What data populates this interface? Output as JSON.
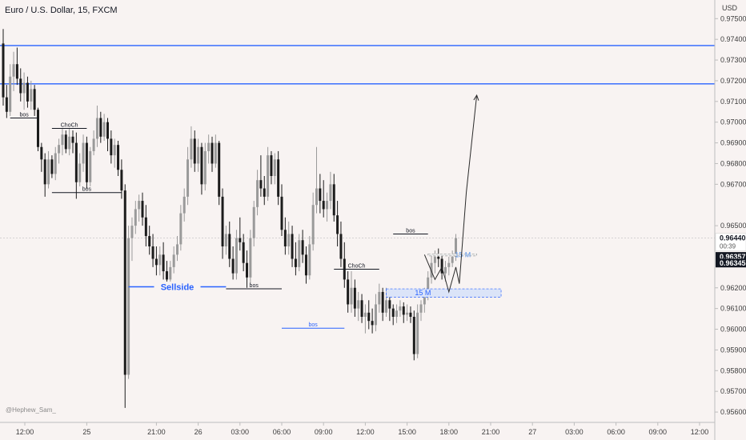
{
  "chart_data": {
    "type": "candlestick",
    "title": "Euro / U.S. Dollar, 15, FXCM",
    "currency_label": "USD",
    "watermark": "@Hephew_Sam_",
    "ylim": [
      0.9555,
      0.9759
    ],
    "y_ticks": [
      "0.97500",
      "0.97400",
      "0.97300",
      "0.97200",
      "0.97100",
      "0.97000",
      "0.96900",
      "0.96800",
      "0.96700",
      "0.96500",
      "0.96200",
      "0.96100",
      "0.96000",
      "0.95900",
      "0.95800",
      "0.95700",
      "0.95600"
    ],
    "x_ticks": [
      {
        "label": "12:00",
        "bar": 0
      },
      {
        "label": "25",
        "bar": 24
      },
      {
        "label": "21:00",
        "bar": 44
      },
      {
        "label": "26",
        "bar": 56
      },
      {
        "label": "03:00",
        "bar": 68
      },
      {
        "label": "06:00",
        "bar": 80
      },
      {
        "label": "09:00",
        "bar": 92
      },
      {
        "label": "12:00",
        "bar": 104
      },
      {
        "label": "15:00",
        "bar": 116
      },
      {
        "label": "18:00",
        "bar": 128
      },
      {
        "label": "21:00",
        "bar": 140
      },
      {
        "label": "27",
        "bar": 152
      },
      {
        "label": "03:00",
        "bar": 164
      },
      {
        "label": "06:00",
        "bar": 176
      },
      {
        "label": "09:00",
        "bar": 188
      },
      {
        "label": "12:00",
        "bar": 200
      }
    ],
    "price_labels": [
      {
        "text": "0.96440",
        "value": 0.9644,
        "time": "00:39",
        "bg": "#ffffff",
        "fg": "#131722"
      },
      {
        "text": "0.96357",
        "value": 0.96357,
        "bg": "#131722",
        "fg": "#ffffff"
      },
      {
        "text": "0.96345",
        "value": 0.96345,
        "bg": "#131722",
        "fg": "#ffffff"
      }
    ],
    "candles": [
      [
        0.9738,
        0.9745,
        0.9708,
        0.9712
      ],
      [
        0.9712,
        0.9718,
        0.9702,
        0.9705
      ],
      [
        0.9705,
        0.9728,
        0.9703,
        0.9722
      ],
      [
        0.9722,
        0.9734,
        0.9715,
        0.9728
      ],
      [
        0.9728,
        0.9736,
        0.9718,
        0.9721
      ],
      [
        0.9721,
        0.9726,
        0.971,
        0.9714
      ],
      [
        0.9714,
        0.9724,
        0.9706,
        0.9719
      ],
      [
        0.9719,
        0.9722,
        0.9707,
        0.971
      ],
      [
        0.971,
        0.972,
        0.9706,
        0.9716
      ],
      [
        0.9716,
        0.9718,
        0.9703,
        0.9706
      ],
      [
        0.9706,
        0.9707,
        0.9686,
        0.9688
      ],
      [
        0.9688,
        0.969,
        0.9676,
        0.9682
      ],
      [
        0.9682,
        0.9685,
        0.9664,
        0.967
      ],
      [
        0.967,
        0.9686,
        0.9668,
        0.9682
      ],
      [
        0.9682,
        0.9684,
        0.9673,
        0.9675
      ],
      [
        0.9675,
        0.9688,
        0.9672,
        0.9685
      ],
      [
        0.9685,
        0.9692,
        0.968,
        0.9689
      ],
      [
        0.9689,
        0.9697,
        0.9684,
        0.9694
      ],
      [
        0.9694,
        0.9696,
        0.9685,
        0.9687
      ],
      [
        0.9687,
        0.9697,
        0.9684,
        0.9693
      ],
      [
        0.9693,
        0.9696,
        0.9685,
        0.969
      ],
      [
        0.969,
        0.9695,
        0.9663,
        0.9671
      ],
      [
        0.9671,
        0.9685,
        0.9669,
        0.968
      ],
      [
        0.968,
        0.9694,
        0.9676,
        0.969
      ],
      [
        0.969,
        0.9693,
        0.9668,
        0.9671
      ],
      [
        0.9671,
        0.9688,
        0.9669,
        0.9686
      ],
      [
        0.9686,
        0.9696,
        0.9684,
        0.9692
      ],
      [
        0.9692,
        0.9708,
        0.9688,
        0.9702
      ],
      [
        0.9702,
        0.9705,
        0.969,
        0.9693
      ],
      [
        0.9693,
        0.9704,
        0.9691,
        0.97
      ],
      [
        0.97,
        0.9702,
        0.9686,
        0.9692
      ],
      [
        0.9692,
        0.9696,
        0.968,
        0.9684
      ],
      [
        0.9684,
        0.9692,
        0.9678,
        0.9689
      ],
      [
        0.9689,
        0.9691,
        0.9674,
        0.9677
      ],
      [
        0.9677,
        0.9682,
        0.9663,
        0.9667
      ],
      [
        0.9667,
        0.967,
        0.9562,
        0.9578
      ],
      [
        0.9578,
        0.965,
        0.9576,
        0.9644
      ],
      [
        0.9644,
        0.9654,
        0.9633,
        0.965
      ],
      [
        0.965,
        0.9662,
        0.9646,
        0.9658
      ],
      [
        0.9658,
        0.9665,
        0.9652,
        0.9662
      ],
      [
        0.9662,
        0.9666,
        0.965,
        0.9654
      ],
      [
        0.9654,
        0.966,
        0.964,
        0.9645
      ],
      [
        0.9645,
        0.965,
        0.9636,
        0.964
      ],
      [
        0.964,
        0.9646,
        0.963,
        0.9634
      ],
      [
        0.9634,
        0.964,
        0.9626,
        0.9631
      ],
      [
        0.9631,
        0.964,
        0.9626,
        0.9636
      ],
      [
        0.9636,
        0.9642,
        0.9624,
        0.9628
      ],
      [
        0.9628,
        0.9633,
        0.962,
        0.9624
      ],
      [
        0.9624,
        0.9633,
        0.962,
        0.963
      ],
      [
        0.963,
        0.964,
        0.9627,
        0.9636
      ],
      [
        0.9636,
        0.9645,
        0.9633,
        0.9641
      ],
      [
        0.9641,
        0.966,
        0.9638,
        0.9656
      ],
      [
        0.9656,
        0.9668,
        0.9652,
        0.9664
      ],
      [
        0.9664,
        0.9688,
        0.966,
        0.9682
      ],
      [
        0.9682,
        0.9698,
        0.9678,
        0.9692
      ],
      [
        0.9692,
        0.9696,
        0.9676,
        0.968
      ],
      [
        0.968,
        0.9692,
        0.9676,
        0.9688
      ],
      [
        0.9688,
        0.969,
        0.9665,
        0.967
      ],
      [
        0.967,
        0.969,
        0.9667,
        0.9686
      ],
      [
        0.9686,
        0.9694,
        0.968,
        0.969
      ],
      [
        0.969,
        0.9693,
        0.9676,
        0.968
      ],
      [
        0.968,
        0.9694,
        0.9678,
        0.969
      ],
      [
        0.969,
        0.9691,
        0.966,
        0.9664
      ],
      [
        0.9664,
        0.9668,
        0.9634,
        0.964
      ],
      [
        0.964,
        0.965,
        0.9636,
        0.9646
      ],
      [
        0.9646,
        0.9652,
        0.963,
        0.9634
      ],
      [
        0.9634,
        0.964,
        0.9624,
        0.9627
      ],
      [
        0.9627,
        0.9648,
        0.9624,
        0.9644
      ],
      [
        0.9644,
        0.9654,
        0.9638,
        0.9642
      ],
      [
        0.9642,
        0.9646,
        0.9628,
        0.9632
      ],
      [
        0.9632,
        0.9638,
        0.962,
        0.9625
      ],
      [
        0.9625,
        0.9648,
        0.9622,
        0.9644
      ],
      [
        0.9644,
        0.9662,
        0.964,
        0.9659
      ],
      [
        0.9659,
        0.9677,
        0.9655,
        0.9672
      ],
      [
        0.9672,
        0.9684,
        0.9664,
        0.9668
      ],
      [
        0.9668,
        0.9674,
        0.966,
        0.9664
      ],
      [
        0.9664,
        0.9688,
        0.9662,
        0.9684
      ],
      [
        0.9684,
        0.9686,
        0.967,
        0.9674
      ],
      [
        0.9674,
        0.9685,
        0.967,
        0.9682
      ],
      [
        0.9682,
        0.9686,
        0.966,
        0.9664
      ],
      [
        0.9664,
        0.967,
        0.9645,
        0.9648
      ],
      [
        0.9648,
        0.9654,
        0.9636,
        0.964
      ],
      [
        0.964,
        0.9652,
        0.9636,
        0.9646
      ],
      [
        0.9646,
        0.965,
        0.963,
        0.9634
      ],
      [
        0.9634,
        0.9642,
        0.9626,
        0.963
      ],
      [
        0.963,
        0.9646,
        0.9628,
        0.9643
      ],
      [
        0.9643,
        0.9648,
        0.9632,
        0.9636
      ],
      [
        0.9636,
        0.964,
        0.9622,
        0.9626
      ],
      [
        0.9626,
        0.9645,
        0.9624,
        0.9641
      ],
      [
        0.9641,
        0.9666,
        0.9638,
        0.966
      ],
      [
        0.966,
        0.9688,
        0.9656,
        0.9668
      ],
      [
        0.9668,
        0.9675,
        0.9656,
        0.9662
      ],
      [
        0.9662,
        0.9672,
        0.9654,
        0.9658
      ],
      [
        0.9658,
        0.9666,
        0.9652,
        0.9662
      ],
      [
        0.9662,
        0.9676,
        0.9658,
        0.967
      ],
      [
        0.967,
        0.9675,
        0.9652,
        0.9655
      ],
      [
        0.9655,
        0.9662,
        0.964,
        0.9646
      ],
      [
        0.9646,
        0.9652,
        0.963,
        0.9634
      ],
      [
        0.9634,
        0.9642,
        0.962,
        0.9624
      ],
      [
        0.9624,
        0.9628,
        0.9608,
        0.9612
      ],
      [
        0.9612,
        0.9628,
        0.9608,
        0.962
      ],
      [
        0.962,
        0.9624,
        0.9606,
        0.961
      ],
      [
        0.961,
        0.9618,
        0.9604,
        0.9614
      ],
      [
        0.9614,
        0.9617,
        0.9603,
        0.9606
      ],
      [
        0.9606,
        0.9612,
        0.9598,
        0.9608
      ],
      [
        0.9608,
        0.9614,
        0.96,
        0.9604
      ],
      [
        0.9604,
        0.961,
        0.9598,
        0.9602
      ],
      [
        0.9602,
        0.9617,
        0.9599,
        0.9612
      ],
      [
        0.9612,
        0.9622,
        0.9608,
        0.9618
      ],
      [
        0.9618,
        0.962,
        0.9604,
        0.9608
      ],
      [
        0.9608,
        0.962,
        0.9606,
        0.9614
      ],
      [
        0.9614,
        0.9616,
        0.9604,
        0.961
      ],
      [
        0.961,
        0.9612,
        0.9602,
        0.9606
      ],
      [
        0.9606,
        0.9612,
        0.9603,
        0.9609
      ],
      [
        0.9609,
        0.9614,
        0.9606,
        0.9611
      ],
      [
        0.9611,
        0.9613,
        0.9603,
        0.9607
      ],
      [
        0.9607,
        0.9612,
        0.9604,
        0.9608
      ],
      [
        0.9608,
        0.9611,
        0.9603,
        0.9606
      ],
      [
        0.9606,
        0.9609,
        0.9585,
        0.9588
      ],
      [
        0.9588,
        0.9612,
        0.9586,
        0.9608
      ],
      [
        0.9608,
        0.9614,
        0.9604,
        0.9612
      ],
      [
        0.9612,
        0.962,
        0.9608,
        0.9617
      ],
      [
        0.9617,
        0.9628,
        0.9614,
        0.9625
      ],
      [
        0.9625,
        0.9636,
        0.9622,
        0.9632
      ],
      [
        0.9632,
        0.9638,
        0.9627,
        0.9635
      ],
      [
        0.9635,
        0.9639,
        0.963,
        0.9634
      ],
      [
        0.9634,
        0.9636,
        0.9624,
        0.9627
      ],
      [
        0.9627,
        0.9633,
        0.9623,
        0.963
      ],
      [
        0.963,
        0.9635,
        0.9626,
        0.9632
      ],
      [
        0.9632,
        0.9638,
        0.963,
        0.9635
      ],
      [
        0.9635,
        0.9646,
        0.9633,
        0.9644
      ]
    ],
    "horizontal_lines": [
      {
        "value": 0.9737,
        "x_from": 0,
        "x_to": "end",
        "color": "#2962ff",
        "width": 1.4
      },
      {
        "value": 0.97185,
        "x_from": 0,
        "x_to": "end",
        "color": "#2962ff",
        "width": 1.4
      },
      {
        "value": 0.9644,
        "x_from": 0,
        "x_to": "end",
        "color": "#c8c8c8",
        "width": 0.8,
        "dash": "2,2"
      }
    ],
    "annotations": [
      {
        "type": "level",
        "label": "bos",
        "value": 0.9702,
        "x_from": 2,
        "x_to": 10,
        "color": "#131722"
      },
      {
        "type": "level",
        "label": "ChoCh",
        "value": 0.9697,
        "x_from": 14,
        "x_to": 24,
        "color": "#131722"
      },
      {
        "type": "level",
        "label": "bos",
        "value": 0.9666,
        "x_from": 14,
        "x_to": 34,
        "color": "#131722"
      },
      {
        "type": "level",
        "label": "Sellside",
        "value": 0.96205,
        "x_from": 36,
        "x_to": 64,
        "color": "#2962ff",
        "bold": true
      },
      {
        "type": "level",
        "label": "bos",
        "value": 0.96195,
        "x_from": 64,
        "x_to": 80,
        "color": "#131722"
      },
      {
        "type": "level",
        "label": "bos",
        "value": 0.96005,
        "x_from": 80,
        "x_to": 98,
        "color": "#2962ff"
      },
      {
        "type": "level",
        "label": "ChoCh",
        "value": 0.9629,
        "x_from": 95,
        "x_to": 108,
        "color": "#131722"
      },
      {
        "type": "level",
        "label": "bos",
        "value": 0.9646,
        "x_from": 112,
        "x_to": 122,
        "color": "#131722"
      }
    ],
    "zones": [
      {
        "label": "15 M",
        "y_top": 0.96195,
        "y_bottom": 0.96155,
        "x_from": 110,
        "x_to": 143,
        "fill": "#dbe4f8",
        "border": "#2962ff",
        "label_color": "#2962ff"
      },
      {
        "label": "15 M",
        "y_top": 0.96364,
        "y_bottom": 0.96354,
        "x_from": 122,
        "x_to": 136,
        "fill": "#eeeeee",
        "border": "#9e9e9e",
        "label_color": "#6aa0f0"
      }
    ],
    "projection_path": [
      [
        121,
        0.9636
      ],
      [
        124,
        0.9624
      ],
      [
        126,
        0.963
      ],
      [
        128,
        0.9618
      ],
      [
        130,
        0.963
      ],
      [
        131,
        0.9622
      ],
      [
        133,
        0.9666
      ],
      [
        136,
        0.9713
      ]
    ]
  }
}
